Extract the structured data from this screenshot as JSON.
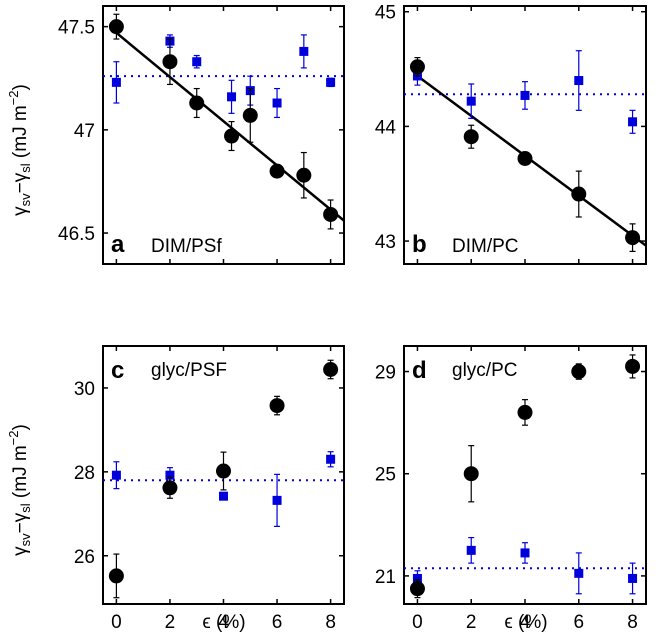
{
  "figure": {
    "ylabel_top": {
      "gamma1": "γ",
      "sub1": "sv",
      "minus": "−",
      "gamma2": "γ",
      "sub2": "sl",
      "unit": " (mJ m",
      "exp": "−2",
      "close": ")"
    },
    "ylabel_bottom": {
      "gamma1": "γ",
      "sub1": "sv",
      "minus": "−",
      "gamma2": "γ",
      "sub2": "sl",
      "unit": " (mJ m",
      "exp": "−2",
      "close": ")"
    },
    "xlabel_left": "ϵ (%)",
    "xlabel_right": "ϵ (%)",
    "colors": {
      "black_series": "#000000",
      "blue_series": "#0000dd"
    }
  },
  "chart_data": [
    {
      "type": "scatter",
      "panel": "a",
      "title": "DIM/PSf",
      "xlim": [
        -0.5,
        8.5
      ],
      "ylim": [
        46.35,
        47.6
      ],
      "yticks": [
        46.5,
        47,
        47.5
      ],
      "ytick_labels": [
        "46.5",
        "47",
        "47.5"
      ],
      "xticks": [
        0,
        2,
        4,
        6,
        8
      ],
      "xtick_labels": [],
      "series": [
        {
          "name": "black circles",
          "marker": "circle",
          "x": [
            0,
            2,
            3,
            4.3,
            5,
            6,
            7,
            8
          ],
          "y": [
            47.5,
            47.33,
            47.13,
            46.97,
            47.07,
            46.8,
            46.78,
            46.59
          ],
          "err": [
            0.06,
            0.11,
            0.07,
            0.07,
            0.13,
            0.03,
            0.11,
            0.07
          ]
        },
        {
          "name": "blue squares",
          "marker": "square",
          "x": [
            0,
            2,
            3,
            4.3,
            5,
            6,
            7,
            8
          ],
          "y": [
            47.23,
            47.43,
            47.33,
            47.16,
            47.19,
            47.13,
            47.38,
            47.23
          ],
          "err": [
            0.1,
            0.03,
            0.03,
            0.08,
            0.07,
            0.07,
            0.08,
            0.02
          ]
        }
      ],
      "fit_line": {
        "x": [
          0,
          8.5
        ],
        "y": [
          47.47,
          46.56
        ]
      },
      "reference_line": {
        "y": 47.26
      }
    },
    {
      "type": "scatter",
      "panel": "b",
      "title": "DIM/PC",
      "xlim": [
        -0.5,
        8.5
      ],
      "ylim": [
        42.8,
        45.05
      ],
      "yticks": [
        43,
        44,
        45
      ],
      "ytick_labels": [
        "43",
        "44",
        "45"
      ],
      "xticks": [
        0,
        2,
        4,
        6,
        8
      ],
      "xtick_labels": [],
      "series": [
        {
          "name": "black circles",
          "marker": "circle",
          "x": [
            0,
            2,
            4,
            6,
            8
          ],
          "y": [
            44.52,
            43.91,
            43.72,
            43.41,
            43.03
          ],
          "err": [
            0.08,
            0.1,
            0.03,
            0.2,
            0.12
          ]
        },
        {
          "name": "blue squares",
          "marker": "square",
          "x": [
            0,
            2,
            4,
            6,
            8
          ],
          "y": [
            44.44,
            44.22,
            44.27,
            44.4,
            44.04
          ],
          "err": [
            0.08,
            0.15,
            0.12,
            0.26,
            0.1
          ]
        }
      ],
      "fit_line": {
        "x": [
          0,
          8.5
        ],
        "y": [
          44.44,
          42.96
        ]
      },
      "reference_line": {
        "y": 44.28
      }
    },
    {
      "type": "scatter",
      "panel": "c",
      "title": "glyc/PSF",
      "xlim": [
        -0.5,
        8.5
      ],
      "ylim": [
        24.85,
        31.0
      ],
      "yticks": [
        26,
        28,
        30
      ],
      "ytick_labels": [
        "26",
        "28",
        "30"
      ],
      "xticks": [
        0,
        2,
        4,
        6,
        8
      ],
      "xtick_labels": [
        "0",
        "2",
        "4",
        "6",
        "8"
      ],
      "series": [
        {
          "name": "black circles",
          "marker": "circle",
          "x": [
            0,
            2,
            4,
            6,
            8
          ],
          "y": [
            25.52,
            27.62,
            28.02,
            29.58,
            30.44
          ],
          "err": [
            0.52,
            0.25,
            0.45,
            0.22,
            0.22
          ]
        },
        {
          "name": "blue squares",
          "marker": "square",
          "x": [
            0,
            2,
            4,
            6,
            8
          ],
          "y": [
            27.92,
            27.92,
            27.42,
            27.32,
            28.3
          ],
          "err": [
            0.32,
            0.18,
            0.05,
            0.62,
            0.18
          ]
        }
      ],
      "reference_line": {
        "y": 27.8
      }
    },
    {
      "type": "scatter",
      "panel": "d",
      "title": "glyc/PC",
      "xlim": [
        -0.5,
        8.5
      ],
      "ylim": [
        19.9,
        30.0
      ],
      "yticks": [
        21,
        25,
        29
      ],
      "ytick_labels": [
        "21",
        "25",
        "29"
      ],
      "xticks": [
        0,
        2,
        4,
        6,
        8
      ],
      "xtick_labels": [
        "0",
        "2",
        "4",
        "6",
        "8"
      ],
      "series": [
        {
          "name": "black circles",
          "marker": "circle",
          "x": [
            0,
            2,
            4,
            6,
            8
          ],
          "y": [
            20.5,
            25.0,
            27.4,
            29.0,
            29.2
          ],
          "err": [
            0.35,
            1.1,
            0.5,
            0.3,
            0.45
          ]
        },
        {
          "name": "blue squares",
          "marker": "square",
          "x": [
            0,
            2,
            4,
            6,
            8
          ],
          "y": [
            20.9,
            22.0,
            21.9,
            21.1,
            20.9
          ],
          "err": [
            0.3,
            0.5,
            0.4,
            0.8,
            0.6
          ]
        }
      ],
      "reference_line": {
        "y": 21.3
      }
    }
  ]
}
